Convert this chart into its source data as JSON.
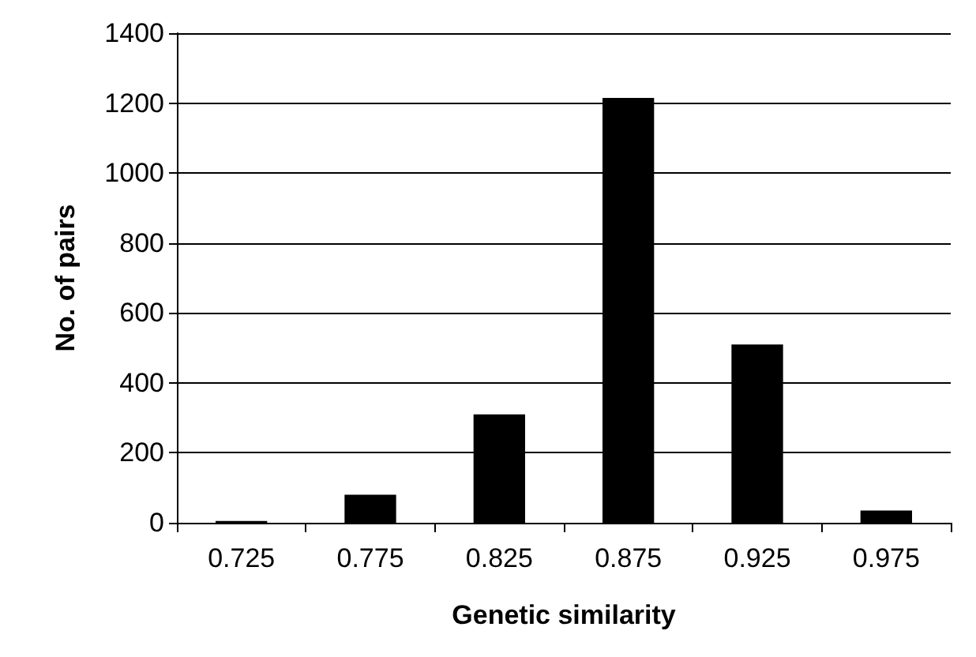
{
  "chart_data": {
    "type": "bar",
    "xlabel": "Genetic similarity",
    "ylabel": "No. of pairs",
    "categories": [
      "0.725",
      "0.775",
      "0.825",
      "0.875",
      "0.925",
      "0.975"
    ],
    "values": [
      5,
      80,
      310,
      1215,
      510,
      35
    ],
    "color": "#000000",
    "ylim": [
      0,
      1400
    ],
    "yticks": [
      0,
      200,
      400,
      600,
      800,
      1000,
      1200,
      1400
    ],
    "grid": "y"
  }
}
